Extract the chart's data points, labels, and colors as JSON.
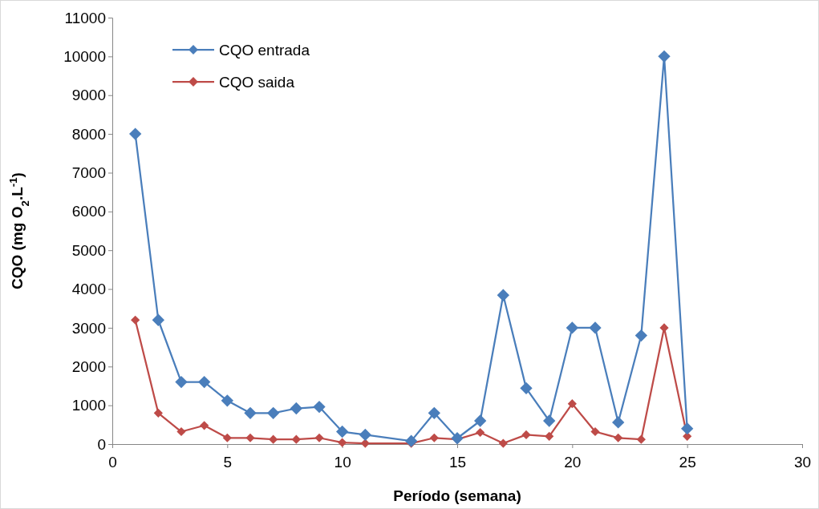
{
  "chart_data": {
    "type": "line",
    "xlabel": "Período (semana)",
    "ylabel": "CQO (mg O$_{2}$.L$^{-1}$)",
    "xlim": [
      0,
      30
    ],
    "xticks": [
      0,
      5,
      10,
      15,
      20,
      25,
      30
    ],
    "ylim": [
      0,
      11000
    ],
    "yticks": [
      0,
      1000,
      2000,
      3000,
      4000,
      5000,
      6000,
      7000,
      8000,
      9000,
      10000,
      11000
    ],
    "grid": false,
    "legend": "top left",
    "marker": "diamond",
    "line_style": "solid",
    "series": [
      {
        "name": "CQO entrada",
        "color": "#4a7ebb",
        "x": [
          1,
          2,
          3,
          4,
          5,
          6,
          7,
          8,
          9,
          10,
          11,
          13,
          14,
          15,
          16,
          17,
          18,
          19,
          20,
          21,
          22,
          23,
          24,
          25
        ],
        "values": [
          8000,
          3200,
          1600,
          1600,
          1120,
          800,
          800,
          920,
          960,
          320,
          240,
          80,
          800,
          150,
          600,
          3840,
          1440,
          600,
          3000,
          3000,
          560,
          2800,
          10000,
          400
        ]
      },
      {
        "name": "CQO saida",
        "color": "#be4b48",
        "x": [
          1,
          2,
          3,
          4,
          5,
          6,
          7,
          8,
          9,
          10,
          11,
          13,
          14,
          15,
          16,
          17,
          18,
          19,
          20,
          21,
          22,
          23,
          24,
          25
        ],
        "values": [
          3200,
          800,
          320,
          480,
          160,
          160,
          120,
          120,
          160,
          40,
          20,
          20,
          160,
          120,
          300,
          20,
          240,
          200,
          1040,
          320,
          160,
          120,
          3000,
          200
        ]
      }
    ]
  }
}
